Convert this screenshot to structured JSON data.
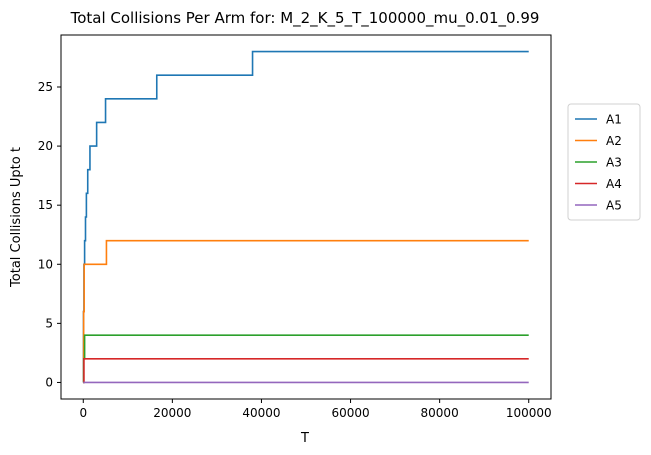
{
  "chart_data": {
    "type": "line",
    "title": "Total Collisions Per Arm for: M_2_K_5_T_100000_mu_0.01_0.99",
    "xlabel": "T",
    "ylabel": "Total Collisions Upto t",
    "xlim": [
      -5000,
      105000
    ],
    "ylim": [
      -1.4,
      29.4
    ],
    "xticks": [
      0,
      20000,
      40000,
      60000,
      80000,
      100000
    ],
    "yticks": [
      0,
      5,
      10,
      15,
      20,
      25
    ],
    "grid": false,
    "legend_position": "right, outside plot",
    "line_style": "step",
    "series": [
      {
        "name": "A1",
        "color": "#1f77b4",
        "x": [
          0,
          50,
          150,
          300,
          500,
          700,
          1000,
          1500,
          3000,
          5000,
          16500,
          38000,
          100000
        ],
        "y": [
          0,
          6,
          10,
          12,
          14,
          16,
          18,
          20,
          22,
          24,
          26,
          28,
          28
        ]
      },
      {
        "name": "A2",
        "color": "#ff7f0e",
        "x": [
          0,
          80,
          200,
          5200,
          100000
        ],
        "y": [
          0,
          6,
          10,
          12,
          12
        ]
      },
      {
        "name": "A3",
        "color": "#2ca02c",
        "x": [
          0,
          100,
          300,
          100000
        ],
        "y": [
          0,
          2,
          4,
          4
        ]
      },
      {
        "name": "A4",
        "color": "#d62728",
        "x": [
          0,
          150,
          100000
        ],
        "y": [
          0,
          2,
          2
        ]
      },
      {
        "name": "A5",
        "color": "#9467bd",
        "x": [
          0,
          100000
        ],
        "y": [
          0,
          0
        ]
      }
    ]
  }
}
